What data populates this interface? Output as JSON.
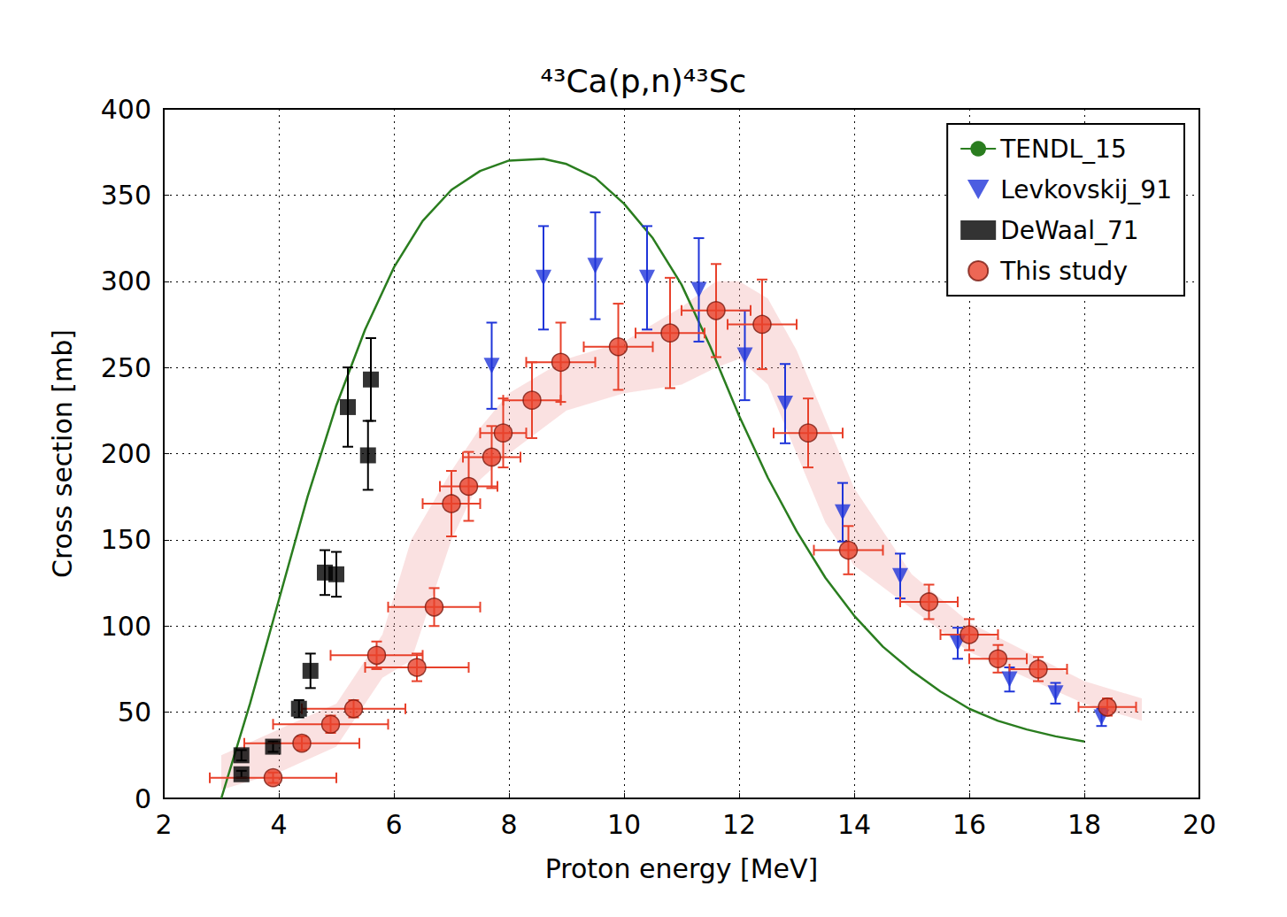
{
  "chart_data": {
    "type": "scatter",
    "title": "⁴³Ca(p,n)⁴³Sc",
    "x_label": "Proton energy [MeV]",
    "y_label": "Cross section [mb]",
    "xlim": [
      2,
      20
    ],
    "ylim": [
      0,
      400
    ],
    "xticks": [
      2,
      4,
      6,
      8,
      10,
      12,
      14,
      16,
      18,
      20
    ],
    "yticks": [
      0,
      50,
      100,
      150,
      200,
      250,
      300,
      350,
      400
    ],
    "grid": true,
    "legend": "upper right",
    "series": [
      {
        "name": "TENDL_15",
        "type": "line",
        "color": "#2a7d1f",
        "line_style": "solid",
        "x": [
          3.0,
          3.5,
          4.0,
          4.5,
          5.0,
          5.5,
          6.0,
          6.5,
          7.0,
          7.5,
          8.0,
          8.6,
          9.0,
          9.5,
          10.0,
          10.5,
          11.0,
          11.5,
          12.0,
          12.5,
          13.0,
          13.5,
          14.0,
          14.5,
          15.0,
          15.5,
          16.0,
          16.5,
          17.0,
          17.5,
          18.0
        ],
        "values": [
          0,
          55,
          115,
          175,
          228,
          272,
          308,
          335,
          353,
          364,
          370,
          371,
          368,
          360,
          345,
          325,
          298,
          262,
          222,
          186,
          155,
          128,
          106,
          88,
          74,
          62,
          52,
          45,
          40,
          36,
          33
        ]
      },
      {
        "name": "Levkovskij_91",
        "type": "scatter",
        "marker": "triangle_down",
        "color": "#1f35d9",
        "x": [
          7.7,
          8.6,
          9.5,
          10.4,
          11.3,
          12.1,
          12.8,
          13.8,
          14.8,
          15.8,
          16.7,
          17.5,
          18.3
        ],
        "values": [
          251,
          302,
          309,
          302,
          295,
          257,
          229,
          166,
          129,
          90,
          69,
          61,
          47
        ],
        "y_error": [
          25,
          30,
          31,
          30,
          30,
          26,
          23,
          17,
          13,
          9,
          7,
          6,
          5
        ]
      },
      {
        "name": "DeWaal_71",
        "type": "scatter",
        "marker": "square",
        "color": "#000000",
        "x": [
          3.35,
          3.35,
          3.9,
          4.35,
          4.55,
          4.8,
          5.0,
          5.2,
          5.55,
          5.6
        ],
        "values": [
          14,
          25,
          30,
          52,
          74,
          131,
          130,
          227,
          199,
          243
        ],
        "y_error": [
          2,
          3,
          3,
          5,
          10,
          13,
          13,
          23,
          20,
          24
        ]
      },
      {
        "name": "This study",
        "type": "scatter",
        "marker": "circle",
        "color": "#e8412b",
        "x": [
          3.9,
          4.4,
          4.9,
          5.3,
          5.7,
          6.4,
          6.7,
          7.0,
          7.3,
          7.7,
          7.9,
          8.4,
          8.9,
          9.9,
          10.8,
          11.6,
          12.4,
          13.2,
          13.9,
          15.3,
          16.0,
          16.5,
          17.2,
          18.4
        ],
        "values": [
          12,
          32,
          43,
          52,
          83,
          76,
          111,
          171,
          181,
          198,
          212,
          231,
          253,
          262,
          270,
          283,
          275,
          212,
          144,
          114,
          95,
          81,
          75,
          53
        ],
        "x_error": [
          1.1,
          1.0,
          1.0,
          0.9,
          0.8,
          0.9,
          0.8,
          0.5,
          0.5,
          0.5,
          0.4,
          0.5,
          0.6,
          0.6,
          0.6,
          0.6,
          0.6,
          0.6,
          0.6,
          0.5,
          0.5,
          0.5,
          0.5,
          0.5
        ],
        "y_error": [
          3,
          4,
          5,
          5,
          8,
          8,
          11,
          19,
          20,
          18,
          20,
          22,
          23,
          25,
          32,
          27,
          26,
          20,
          14,
          10,
          9,
          8,
          7,
          5
        ],
        "band": {
          "x": [
            3.0,
            4.0,
            5.0,
            5.8,
            6.3,
            7.0,
            7.5,
            8.0,
            9.0,
            10.0,
            11.0,
            11.6,
            12.0,
            12.5,
            13.0,
            13.5,
            14.0,
            15.0,
            16.0,
            17.0,
            18.0,
            19.0
          ],
          "lower": [
            5,
            15,
            30,
            70,
            80,
            150,
            185,
            200,
            225,
            235,
            240,
            250,
            255,
            240,
            200,
            160,
            135,
            110,
            85,
            70,
            55,
            45
          ],
          "upper": [
            25,
            40,
            55,
            95,
            150,
            190,
            215,
            235,
            255,
            265,
            285,
            300,
            300,
            290,
            260,
            220,
            180,
            130,
            102,
            85,
            68,
            58
          ]
        }
      }
    ]
  }
}
